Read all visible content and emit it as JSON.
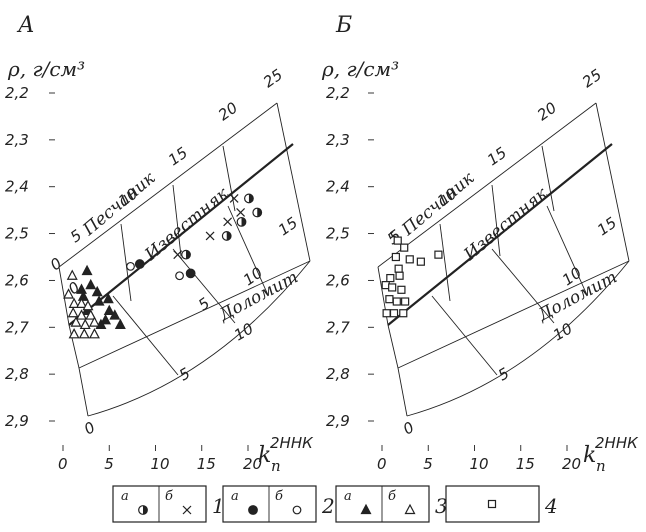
{
  "chart_data": [
    {
      "type": "scatter",
      "panel_letter": "А",
      "ylabel": "ρ, г/см³",
      "xlabel_main": "k",
      "xlabel_sub": "п",
      "xlabel_sup": "2ННК",
      "y_ticks": [
        "2,2",
        "2,3",
        "2,4",
        "2,5",
        "2,6",
        "2,7",
        "2,8",
        "2,9"
      ],
      "x_ticks": [
        "0",
        "5",
        "10",
        "15",
        "20"
      ],
      "ylim": [
        2.9,
        2.2
      ],
      "xlim": [
        0,
        22
      ],
      "lithology_labels": [
        "Песчаник",
        "Известняк",
        "Доломит"
      ],
      "line_values": {
        "sandstone": [
          "0",
          "5",
          "10",
          "15",
          "20",
          "25"
        ],
        "dolomite": [
          "0",
          "5",
          "10",
          "15"
        ],
        "bottom": [
          "0",
          "5",
          "10"
        ]
      },
      "series": [
        {
          "legend": "1а",
          "marker": "half-filled-circle",
          "points": [
            [
              13.3,
              2.545
            ],
            [
              17.7,
              2.505
            ],
            [
              19.3,
              2.475
            ],
            [
              20.1,
              2.425
            ],
            [
              21.0,
              2.455
            ]
          ]
        },
        {
          "legend": "1б",
          "marker": "cross",
          "points": [
            [
              12.4,
              2.545
            ],
            [
              15.9,
              2.505
            ],
            [
              17.8,
              2.475
            ],
            [
              18.5,
              2.425
            ],
            [
              19.2,
              2.455
            ]
          ]
        },
        {
          "legend": "2а",
          "marker": "filled-circle",
          "points": [
            [
              8.3,
              2.565
            ],
            [
              13.8,
              2.585
            ]
          ]
        },
        {
          "legend": "2б",
          "marker": "open-circle",
          "points": [
            [
              7.3,
              2.57
            ],
            [
              12.6,
              2.59
            ]
          ]
        },
        {
          "legend": "3а",
          "marker": "filled-triangle",
          "points": [
            [
              2.6,
              2.58
            ],
            [
              2.0,
              2.62
            ],
            [
              3.0,
              2.61
            ],
            [
              3.7,
              2.625
            ],
            [
              2.2,
              2.635
            ],
            [
              3.9,
              2.645
            ],
            [
              4.9,
              2.64
            ],
            [
              5.0,
              2.665
            ],
            [
              2.6,
              2.665
            ],
            [
              4.6,
              2.685
            ],
            [
              5.6,
              2.675
            ],
            [
              4.1,
              2.695
            ],
            [
              6.2,
              2.695
            ]
          ]
        },
        {
          "legend": "3б",
          "marker": "open-triangle",
          "points": [
            [
              0.6,
              2.63
            ],
            [
              1.2,
              2.65
            ],
            [
              2.0,
              2.65
            ],
            [
              2.7,
              2.655
            ],
            [
              1.1,
              2.67
            ],
            [
              2.0,
              2.675
            ],
            [
              3.0,
              2.675
            ],
            [
              1.4,
              2.69
            ],
            [
              2.4,
              2.695
            ],
            [
              3.4,
              2.69
            ],
            [
              1.2,
              2.715
            ],
            [
              2.3,
              2.715
            ],
            [
              3.4,
              2.715
            ],
            [
              1.0,
              2.59
            ]
          ]
        }
      ]
    },
    {
      "type": "scatter",
      "panel_letter": "Б",
      "ylabel": "ρ, г/см³",
      "xlabel_main": "k",
      "xlabel_sub": "п",
      "xlabel_sup": "2ННК",
      "y_ticks": [
        "2,2",
        "2,3",
        "2,4",
        "2,5",
        "2,6",
        "2,7",
        "2,8",
        "2,9"
      ],
      "x_ticks": [
        "0",
        "5",
        "10",
        "15",
        "20"
      ],
      "ylim": [
        2.9,
        2.2
      ],
      "xlim": [
        0,
        22
      ],
      "lithology_labels": [
        "Песчаник",
        "Известняк",
        "Доломит"
      ],
      "line_values": {
        "sandstone": [
          "5",
          "10",
          "15",
          "20",
          "25"
        ],
        "dolomite": [
          "5",
          "10",
          "15"
        ],
        "bottom": [
          "0",
          "5",
          "10"
        ]
      },
      "series": [
        {
          "legend": "4",
          "marker": "open-square",
          "points": [
            [
              1.7,
              2.515
            ],
            [
              2.4,
              2.53
            ],
            [
              1.5,
              2.55
            ],
            [
              3.0,
              2.555
            ],
            [
              4.2,
              2.56
            ],
            [
              6.1,
              2.545
            ],
            [
              1.8,
              2.575
            ],
            [
              0.9,
              2.595
            ],
            [
              1.9,
              2.59
            ],
            [
              0.4,
              2.61
            ],
            [
              1.1,
              2.615
            ],
            [
              2.1,
              2.62
            ],
            [
              0.8,
              2.64
            ],
            [
              1.6,
              2.645
            ],
            [
              2.5,
              2.645
            ],
            [
              0.5,
              2.67
            ],
            [
              1.3,
              2.67
            ],
            [
              2.3,
              2.67
            ]
          ]
        }
      ]
    }
  ],
  "legend": [
    {
      "label": "1",
      "a": "а",
      "b": "б",
      "a_marker": "half-filled-circle",
      "b_marker": "cross"
    },
    {
      "label": "2",
      "a": "а",
      "b": "б",
      "a_marker": "filled-circle",
      "b_marker": "open-circle"
    },
    {
      "label": "3",
      "a": "а",
      "b": "б",
      "a_marker": "filled-triangle",
      "b_marker": "open-triangle"
    },
    {
      "label": "4",
      "marker": "open-square"
    }
  ]
}
